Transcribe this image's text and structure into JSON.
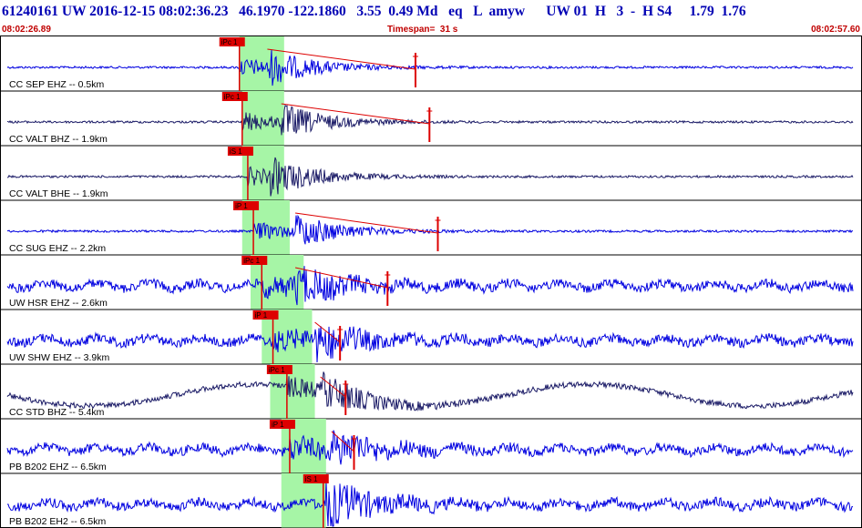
{
  "header": {
    "title": "61240161 UW 2016-12-15 08:02:36.23   46.1970 -122.1860   3.55  0.49 Md   eq   L  amyw      UW 01  H   3  -  H S4     1.79  1.76",
    "start_time": "08:02:26.89",
    "timespan": "Timespan=  31 s",
    "end_time": "08:02:57.60"
  },
  "colors": {
    "trace_blue": "#0000e0",
    "trace_dark": "#1a1a66",
    "pick": "#dd0000",
    "window": "#a6f5a6",
    "label_text": "#000000",
    "header_text": "#0000b4",
    "time_text": "#c00000"
  },
  "chart_data": {
    "type": "line",
    "title": "",
    "xlabel": "",
    "ylabel": "",
    "x_unit": "s",
    "xlim": [
      0,
      30.71
    ],
    "channels": [
      {
        "label": "CC SEP EHZ -- 0.5km",
        "p_pick_label": "iPc 1",
        "p_pick": 8.5,
        "window": [
          8.5,
          10.1
        ],
        "s_pick": 9.5,
        "coda_end": 14.8,
        "color": "trace_blue",
        "noise": "low"
      },
      {
        "label": "CC VALT BHZ -- 1.9km",
        "p_pick_label": "iPc 1",
        "p_pick": 8.6,
        "window": [
          8.6,
          10.1
        ],
        "s_pick": 10.0,
        "coda_end": 15.3,
        "color": "trace_dark",
        "noise": "low"
      },
      {
        "label": "CC VALT BHE -- 1.9km",
        "p_pick_label": "iS 1",
        "p_pick": 8.8,
        "window": [
          8.6,
          10.1
        ],
        "s_pick": 9.6,
        "coda_end": 0,
        "color": "trace_dark",
        "noise": "low"
      },
      {
        "label": "CC SUG EHZ -- 2.2km",
        "p_pick_label": "iP 1",
        "p_pick": 9.0,
        "window": [
          8.6,
          10.3
        ],
        "s_pick": 10.5,
        "coda_end": 15.6,
        "color": "trace_blue",
        "noise": "low"
      },
      {
        "label": "UW HSR EHZ -- 2.6km",
        "p_pick_label": "iPc 1",
        "p_pick": 9.3,
        "window": [
          8.9,
          10.8
        ],
        "s_pick": 10.5,
        "coda_end": 13.8,
        "color": "trace_blue",
        "noise": "high"
      },
      {
        "label": "UW SHW EHZ -- 3.9km",
        "p_pick_label": "iP 1",
        "p_pick": 9.7,
        "window": [
          9.3,
          11.1
        ],
        "s_pick": 11.2,
        "coda_end": 12.1,
        "color": "trace_blue",
        "noise": "high"
      },
      {
        "label": "CC STD BHZ -- 5.4km",
        "p_pick_label": "iPc 1",
        "p_pick": 10.2,
        "window": [
          9.6,
          11.2
        ],
        "s_pick": 11.4,
        "coda_end": 12.3,
        "color": "trace_dark",
        "noise": "swell"
      },
      {
        "label": "PB B202 EHZ -- 6.5km",
        "p_pick_label": "iP 1",
        "p_pick": 10.3,
        "window": [
          10.0,
          11.6
        ],
        "s_pick": 11.8,
        "coda_end": 12.6,
        "color": "trace_blue",
        "noise": "high"
      },
      {
        "label": "PB B202 EH2 -- 6.5km",
        "p_pick_label": "iS 1",
        "p_pick": 11.5,
        "window": [
          10.0,
          11.6
        ],
        "s_pick": 11.6,
        "coda_end": 0,
        "color": "trace_blue",
        "noise": "high"
      }
    ]
  }
}
